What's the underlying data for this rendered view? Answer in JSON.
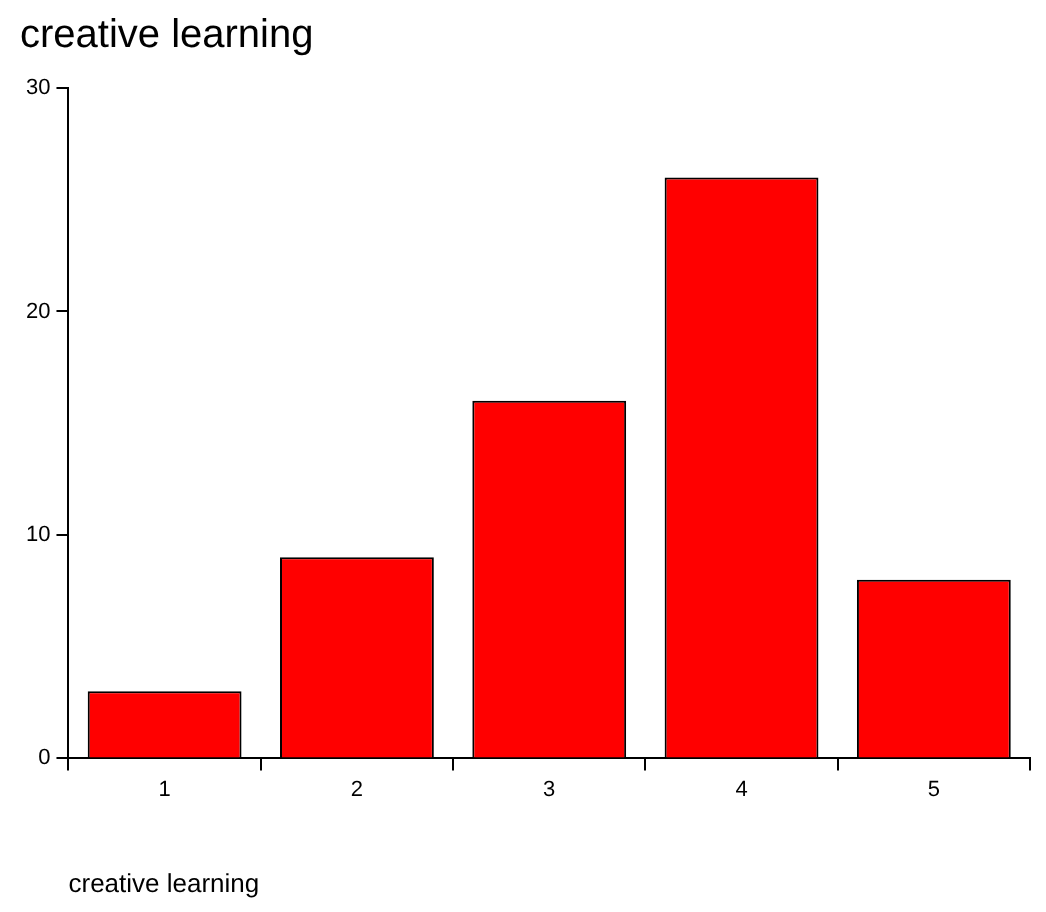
{
  "chart_data": {
    "type": "bar",
    "title": "creative learning",
    "xlabel": "creative learning",
    "categories": [
      "1",
      "2",
      "3",
      "4",
      "5"
    ],
    "values": [
      3,
      9,
      16,
      26,
      8
    ],
    "color": "#ff0000",
    "ylim": [
      0,
      30
    ],
    "yticks": [
      0,
      10,
      20,
      30
    ],
    "grid": false,
    "legend": false
  }
}
